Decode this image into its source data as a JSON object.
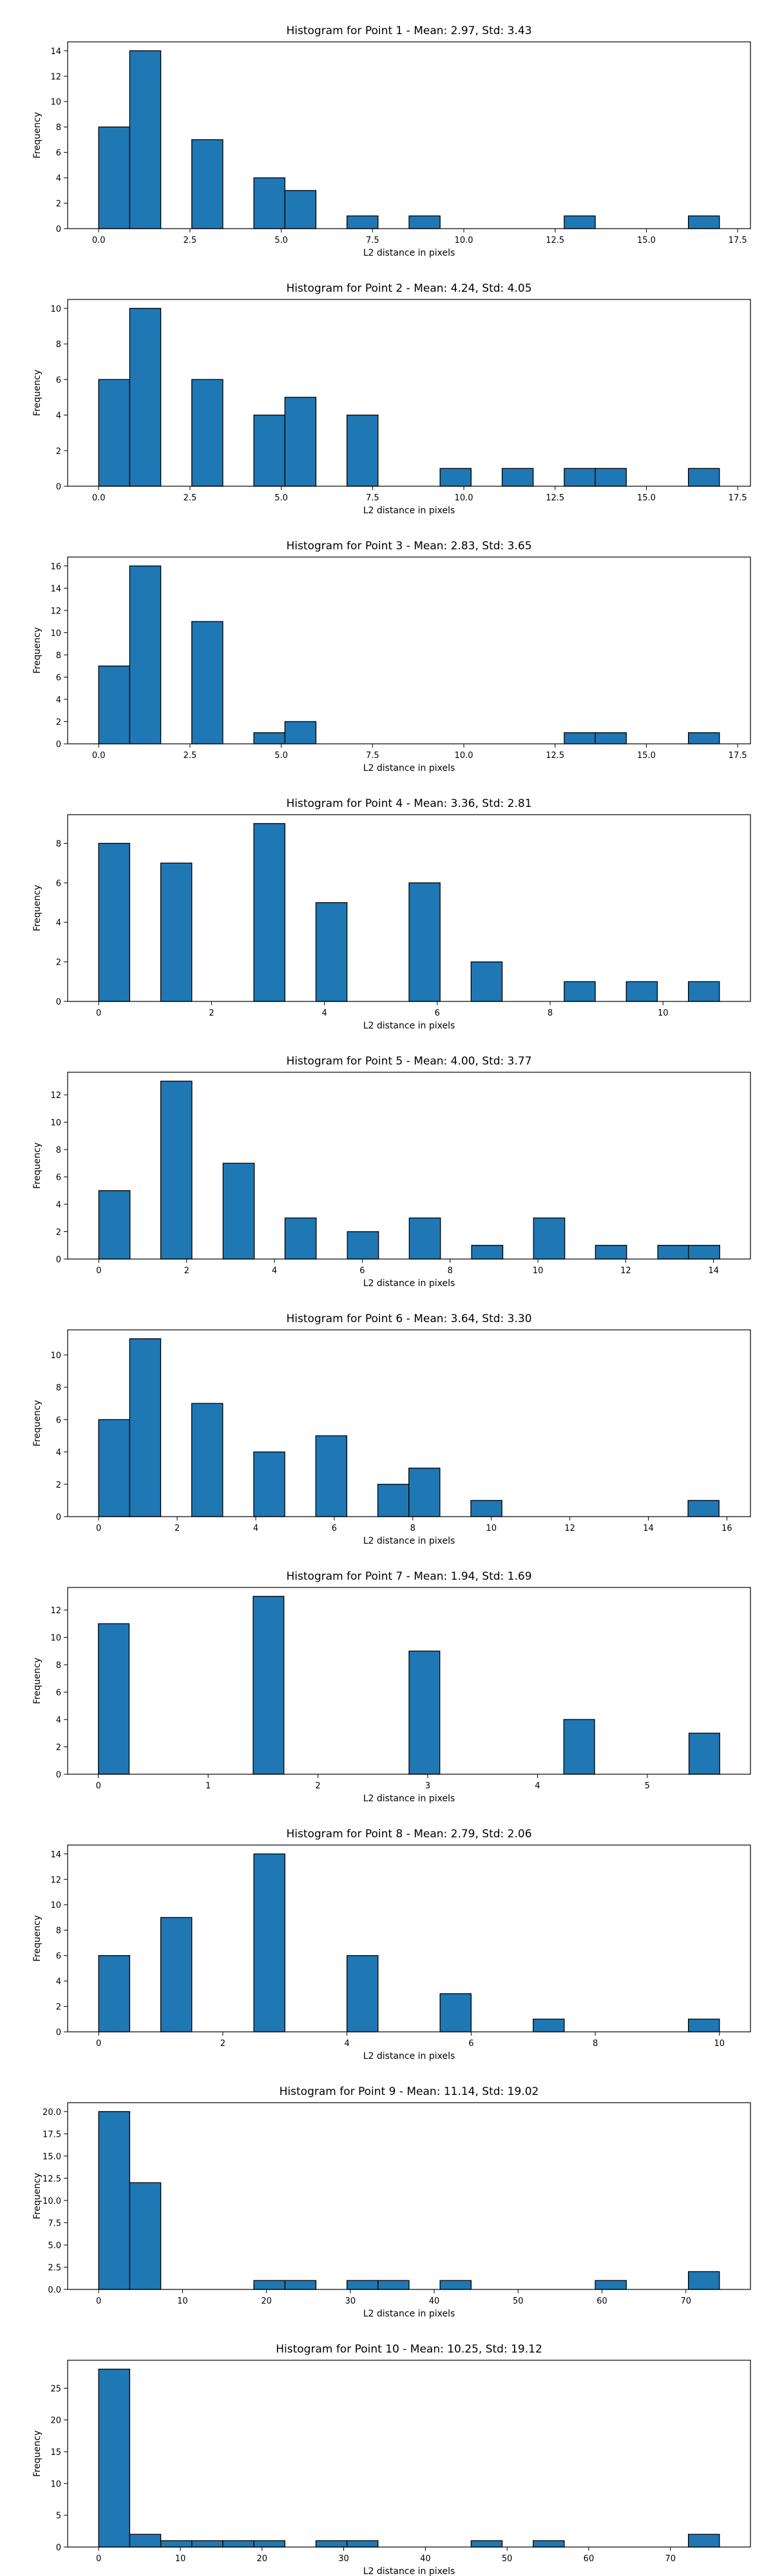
{
  "chart_data": [
    {
      "type": "bar",
      "title": "Histogram for Point 1 - Mean: 2.97, Std: 3.43",
      "xlabel": "L2 distance in pixels",
      "ylabel": "Frequency",
      "xlim": [
        -0.85,
        17.85
      ],
      "ylim": [
        0,
        14.7
      ],
      "xticks": [
        0.0,
        2.5,
        5.0,
        7.5,
        10.0,
        12.5,
        15.0,
        17.5
      ],
      "xtick_labels": [
        "0.0",
        "2.5",
        "5.0",
        "7.5",
        "10.0",
        "12.5",
        "15.0",
        "17.5"
      ],
      "yticks": [
        0,
        2,
        4,
        6,
        8,
        10,
        12,
        14
      ],
      "bin_width": 0.85,
      "bins": [
        {
          "x": 0.0,
          "count": 8
        },
        {
          "x": 0.85,
          "count": 14
        },
        {
          "x": 2.55,
          "count": 7
        },
        {
          "x": 4.25,
          "count": 4
        },
        {
          "x": 5.1,
          "count": 3
        },
        {
          "x": 6.8,
          "count": 1
        },
        {
          "x": 8.5,
          "count": 1
        },
        {
          "x": 12.75,
          "count": 1
        },
        {
          "x": 16.15,
          "count": 1
        }
      ]
    },
    {
      "type": "bar",
      "title": "Histogram for Point 2 - Mean: 4.24, Std: 4.05",
      "xlabel": "L2 distance in pixels",
      "ylabel": "Frequency",
      "xlim": [
        -0.85,
        17.85
      ],
      "ylim": [
        0,
        10.5
      ],
      "xticks": [
        0.0,
        2.5,
        5.0,
        7.5,
        10.0,
        12.5,
        15.0,
        17.5
      ],
      "xtick_labels": [
        "0.0",
        "2.5",
        "5.0",
        "7.5",
        "10.0",
        "12.5",
        "15.0",
        "17.5"
      ],
      "yticks": [
        0,
        2,
        4,
        6,
        8,
        10
      ],
      "bin_width": 0.85,
      "bins": [
        {
          "x": 0.0,
          "count": 6
        },
        {
          "x": 0.85,
          "count": 10
        },
        {
          "x": 2.55,
          "count": 6
        },
        {
          "x": 4.25,
          "count": 4
        },
        {
          "x": 5.1,
          "count": 5
        },
        {
          "x": 6.8,
          "count": 4
        },
        {
          "x": 9.35,
          "count": 1
        },
        {
          "x": 11.05,
          "count": 1
        },
        {
          "x": 12.75,
          "count": 1
        },
        {
          "x": 13.6,
          "count": 1
        },
        {
          "x": 16.15,
          "count": 1
        }
      ]
    },
    {
      "type": "bar",
      "title": "Histogram for Point 3 - Mean: 2.83, Std: 3.65",
      "xlabel": "L2 distance in pixels",
      "ylabel": "Frequency",
      "xlim": [
        -0.85,
        17.85
      ],
      "ylim": [
        0,
        16.8
      ],
      "xticks": [
        0.0,
        2.5,
        5.0,
        7.5,
        10.0,
        12.5,
        15.0,
        17.5
      ],
      "xtick_labels": [
        "0.0",
        "2.5",
        "5.0",
        "7.5",
        "10.0",
        "12.5",
        "15.0",
        "17.5"
      ],
      "yticks": [
        0,
        2,
        4,
        6,
        8,
        10,
        12,
        14,
        16
      ],
      "bin_width": 0.85,
      "bins": [
        {
          "x": 0.0,
          "count": 7
        },
        {
          "x": 0.85,
          "count": 16
        },
        {
          "x": 2.55,
          "count": 11
        },
        {
          "x": 4.25,
          "count": 1
        },
        {
          "x": 5.1,
          "count": 2
        },
        {
          "x": 12.75,
          "count": 1
        },
        {
          "x": 13.6,
          "count": 1
        },
        {
          "x": 16.15,
          "count": 1
        }
      ]
    },
    {
      "type": "bar",
      "title": "Histogram for Point 4 - Mean: 3.36, Std: 2.81",
      "xlabel": "L2 distance in pixels",
      "ylabel": "Frequency",
      "xlim": [
        -0.55,
        11.55
      ],
      "ylim": [
        0,
        9.45
      ],
      "xticks": [
        0,
        2,
        4,
        6,
        8,
        10
      ],
      "xtick_labels": [
        "0",
        "2",
        "4",
        "6",
        "8",
        "10"
      ],
      "yticks": [
        0,
        2,
        4,
        6,
        8
      ],
      "bin_width": 0.55,
      "bins": [
        {
          "x": 0.0,
          "count": 8
        },
        {
          "x": 1.1,
          "count": 7
        },
        {
          "x": 2.75,
          "count": 9
        },
        {
          "x": 3.85,
          "count": 5
        },
        {
          "x": 5.5,
          "count": 6
        },
        {
          "x": 6.6,
          "count": 2
        },
        {
          "x": 8.25,
          "count": 1
        },
        {
          "x": 9.35,
          "count": 1
        },
        {
          "x": 10.45,
          "count": 1
        }
      ]
    },
    {
      "type": "bar",
      "title": "Histogram for Point 5 - Mean: 4.00, Std: 3.77",
      "xlabel": "L2 distance in pixels",
      "ylabel": "Frequency",
      "xlim": [
        -0.71,
        14.84
      ],
      "ylim": [
        0,
        13.65
      ],
      "xticks": [
        0,
        2,
        4,
        6,
        8,
        10,
        12,
        14
      ],
      "xtick_labels": [
        "0",
        "2",
        "4",
        "6",
        "8",
        "10",
        "12",
        "14"
      ],
      "yticks": [
        0,
        2,
        4,
        6,
        8,
        10,
        12
      ],
      "bin_width": 0.71,
      "bins": [
        {
          "x": 0.0,
          "count": 5
        },
        {
          "x": 1.41,
          "count": 13
        },
        {
          "x": 2.83,
          "count": 7
        },
        {
          "x": 4.24,
          "count": 3
        },
        {
          "x": 5.66,
          "count": 2
        },
        {
          "x": 7.07,
          "count": 3
        },
        {
          "x": 8.49,
          "count": 1
        },
        {
          "x": 9.9,
          "count": 3
        },
        {
          "x": 11.31,
          "count": 1
        },
        {
          "x": 12.73,
          "count": 1
        },
        {
          "x": 13.43,
          "count": 1
        }
      ]
    },
    {
      "type": "bar",
      "title": "Histogram for Point 6 - Mean: 3.64, Std: 3.30",
      "xlabel": "L2 distance in pixels",
      "ylabel": "Frequency",
      "xlim": [
        -0.79,
        16.6
      ],
      "ylim": [
        0,
        11.55
      ],
      "xticks": [
        0,
        2,
        4,
        6,
        8,
        10,
        12,
        14,
        16
      ],
      "xtick_labels": [
        "0",
        "2",
        "4",
        "6",
        "8",
        "10",
        "12",
        "14",
        "16"
      ],
      "yticks": [
        0,
        2,
        4,
        6,
        8,
        10
      ],
      "bin_width": 0.79,
      "bins": [
        {
          "x": 0.0,
          "count": 6
        },
        {
          "x": 0.79,
          "count": 11
        },
        {
          "x": 2.37,
          "count": 7
        },
        {
          "x": 3.95,
          "count": 4
        },
        {
          "x": 5.53,
          "count": 5
        },
        {
          "x": 7.11,
          "count": 2
        },
        {
          "x": 7.9,
          "count": 3
        },
        {
          "x": 9.48,
          "count": 1
        },
        {
          "x": 15.01,
          "count": 1
        }
      ]
    },
    {
      "type": "bar",
      "title": "Histogram for Point 7 - Mean: 1.94, Std: 1.69",
      "xlabel": "L2 distance in pixels",
      "ylabel": "Frequency",
      "xlim": [
        -0.28,
        5.94
      ],
      "ylim": [
        0,
        13.65
      ],
      "xticks": [
        0,
        1,
        2,
        3,
        4,
        5
      ],
      "xtick_labels": [
        "0",
        "1",
        "2",
        "3",
        "4",
        "5"
      ],
      "yticks": [
        0,
        2,
        4,
        6,
        8,
        10,
        12
      ],
      "bin_width": 0.28,
      "bins": [
        {
          "x": 0.0,
          "count": 11
        },
        {
          "x": 1.41,
          "count": 13
        },
        {
          "x": 2.83,
          "count": 9
        },
        {
          "x": 4.24,
          "count": 4
        },
        {
          "x": 5.38,
          "count": 3
        }
      ]
    },
    {
      "type": "bar",
      "title": "Histogram for Point 8 - Mean: 2.79, Std: 2.06",
      "xlabel": "L2 distance in pixels",
      "ylabel": "Frequency",
      "xlim": [
        -0.5,
        10.5
      ],
      "ylim": [
        0,
        14.7
      ],
      "xticks": [
        0,
        2,
        4,
        6,
        8,
        10
      ],
      "xtick_labels": [
        "0",
        "2",
        "4",
        "6",
        "8",
        "10"
      ],
      "yticks": [
        0,
        2,
        4,
        6,
        8,
        10,
        12,
        14
      ],
      "bin_width": 0.5,
      "bins": [
        {
          "x": 0.0,
          "count": 6
        },
        {
          "x": 1.0,
          "count": 9
        },
        {
          "x": 2.5,
          "count": 14
        },
        {
          "x": 4.0,
          "count": 6
        },
        {
          "x": 5.5,
          "count": 3
        },
        {
          "x": 7.0,
          "count": 1
        },
        {
          "x": 9.5,
          "count": 1
        }
      ]
    },
    {
      "type": "bar",
      "title": "Histogram for Point 9 - Mean: 11.14, Std: 19.02",
      "xlabel": "L2 distance in pixels",
      "ylabel": "Frequency",
      "xlim": [
        -3.7,
        77.7
      ],
      "ylim": [
        0,
        21.0
      ],
      "xticks": [
        0,
        10,
        20,
        30,
        40,
        50,
        60,
        70
      ],
      "xtick_labels": [
        "0",
        "10",
        "20",
        "30",
        "40",
        "50",
        "60",
        "70"
      ],
      "yticks": [
        0,
        2.5,
        5.0,
        7.5,
        10.0,
        12.5,
        15.0,
        17.5,
        20.0
      ],
      "ytick_labels": [
        "0.0",
        "2.5",
        "5.0",
        "7.5",
        "10.0",
        "12.5",
        "15.0",
        "17.5",
        "20.0"
      ],
      "bin_width": 3.7,
      "bins": [
        {
          "x": 0.0,
          "count": 20
        },
        {
          "x": 3.7,
          "count": 12
        },
        {
          "x": 18.5,
          "count": 1
        },
        {
          "x": 22.2,
          "count": 1
        },
        {
          "x": 29.6,
          "count": 1
        },
        {
          "x": 33.3,
          "count": 1
        },
        {
          "x": 40.7,
          "count": 1
        },
        {
          "x": 59.2,
          "count": 1
        },
        {
          "x": 70.3,
          "count": 2
        }
      ]
    },
    {
      "type": "bar",
      "title": "Histogram for Point 10 - Mean: 10.25, Std: 19.12",
      "xlabel": "L2 distance in pixels",
      "ylabel": "Frequency",
      "xlim": [
        -3.8,
        79.8
      ],
      "ylim": [
        0,
        29.4
      ],
      "xticks": [
        0,
        10,
        20,
        30,
        40,
        50,
        60,
        70
      ],
      "xtick_labels": [
        "0",
        "10",
        "20",
        "30",
        "40",
        "50",
        "60",
        "70"
      ],
      "yticks": [
        0,
        5,
        10,
        15,
        20,
        25
      ],
      "bin_width": 3.8,
      "bins": [
        {
          "x": 0.0,
          "count": 28
        },
        {
          "x": 3.8,
          "count": 2
        },
        {
          "x": 7.6,
          "count": 1
        },
        {
          "x": 11.4,
          "count": 1
        },
        {
          "x": 15.2,
          "count": 1
        },
        {
          "x": 19.0,
          "count": 1
        },
        {
          "x": 26.6,
          "count": 1
        },
        {
          "x": 30.4,
          "count": 1
        },
        {
          "x": 45.6,
          "count": 1
        },
        {
          "x": 53.2,
          "count": 1
        },
        {
          "x": 72.2,
          "count": 2
        }
      ]
    }
  ]
}
